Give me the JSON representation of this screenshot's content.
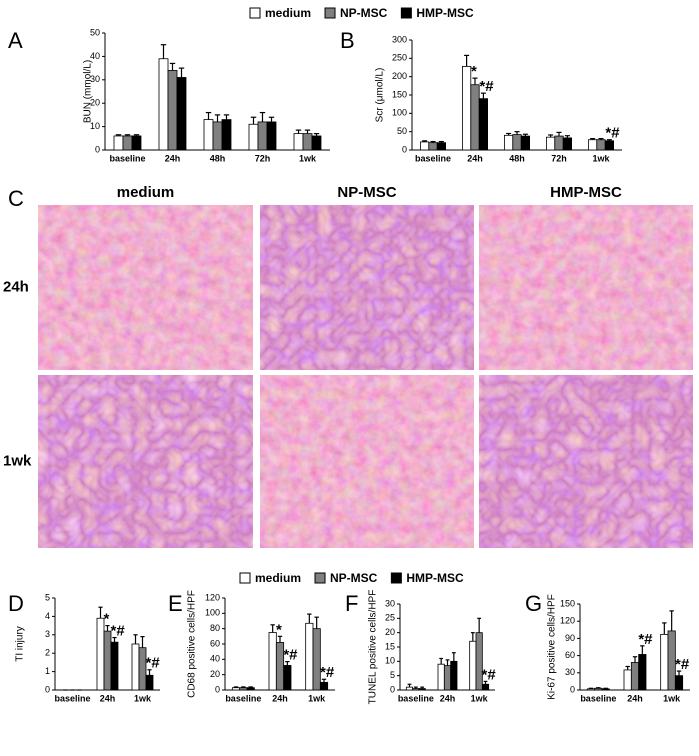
{
  "chart_data": [
    {
      "type": "bar",
      "label": "A",
      "y_label": "BUN (mmol/L)",
      "legend": true,
      "categories": [
        "baseline",
        "24h",
        "48h",
        "72h",
        "1wk"
      ],
      "ylim": [
        0,
        50
      ],
      "yticks": [
        0,
        10,
        20,
        30,
        40,
        50
      ],
      "series": [
        {
          "name": "medium",
          "color": "#ffffff",
          "values": [
            6,
            39,
            13,
            11,
            7
          ],
          "errors": [
            0.5,
            6,
            3,
            3,
            1.5
          ]
        },
        {
          "name": "NP-MSC",
          "color": "#808080",
          "values": [
            6,
            34,
            12,
            12,
            7
          ],
          "errors": [
            0.5,
            3,
            3,
            4,
            1.5
          ]
        },
        {
          "name": "HMP-MSC",
          "color": "#000000",
          "values": [
            6,
            31,
            13,
            12,
            6
          ],
          "errors": [
            0.5,
            4,
            2,
            2,
            1
          ]
        }
      ],
      "annotations": []
    },
    {
      "type": "bar",
      "label": "B",
      "y_label": "Scr (μmol/L)",
      "categories": [
        "baseline",
        "24h",
        "48h",
        "72h",
        "1wk"
      ],
      "ylim": [
        0,
        300
      ],
      "yticks": [
        0,
        50,
        100,
        150,
        200,
        250,
        300
      ],
      "series": [
        {
          "name": "medium",
          "color": "#ffffff",
          "values": [
            22,
            228,
            40,
            35,
            28
          ],
          "errors": [
            3,
            30,
            5,
            6,
            3
          ]
        },
        {
          "name": "NP-MSC",
          "color": "#808080",
          "values": [
            20,
            178,
            42,
            38,
            28
          ],
          "errors": [
            3,
            18,
            8,
            10,
            3
          ]
        },
        {
          "name": "HMP-MSC",
          "color": "#000000",
          "values": [
            20,
            140,
            38,
            33,
            25
          ],
          "errors": [
            3,
            15,
            5,
            6,
            3
          ]
        }
      ],
      "annotations": [
        {
          "text": "*",
          "series": 1,
          "index": 1
        },
        {
          "text": "*#",
          "series": 2,
          "index": 1
        },
        {
          "text": "*#",
          "series": 2,
          "index": 4
        }
      ]
    },
    {
      "type": "bar",
      "label": "D",
      "y_label": "TI injury",
      "legend": true,
      "categories": [
        "baseline",
        "24h",
        "1wk"
      ],
      "ylim": [
        0,
        5
      ],
      "yticks": [
        0,
        1,
        2,
        3,
        4,
        5
      ],
      "series": [
        {
          "name": "medium",
          "color": "#ffffff",
          "values": [
            0,
            3.9,
            2.5
          ],
          "errors": [
            0,
            0.6,
            0.5
          ]
        },
        {
          "name": "NP-MSC",
          "color": "#808080",
          "values": [
            0,
            3.2,
            2.3
          ],
          "errors": [
            0,
            0.3,
            0.6
          ]
        },
        {
          "name": "HMP-MSC",
          "color": "#000000",
          "values": [
            0,
            2.6,
            0.8
          ],
          "errors": [
            0,
            0.25,
            0.3
          ]
        }
      ],
      "annotations": [
        {
          "text": "*",
          "series": 1,
          "index": 1
        },
        {
          "text": "*#",
          "series": 2,
          "index": 1
        },
        {
          "text": "*#",
          "series": 2,
          "index": 2
        }
      ]
    },
    {
      "type": "bar",
      "label": "E",
      "y_label": "CD68 positive cells/HPF",
      "categories": [
        "baseline",
        "24h",
        "1wk"
      ],
      "ylim": [
        0,
        120
      ],
      "yticks": [
        0,
        20,
        40,
        60,
        80,
        100,
        120
      ],
      "series": [
        {
          "name": "medium",
          "color": "#ffffff",
          "values": [
            3,
            75,
            87
          ],
          "errors": [
            1,
            10,
            12
          ]
        },
        {
          "name": "NP-MSC",
          "color": "#808080",
          "values": [
            3,
            62,
            80
          ],
          "errors": [
            1,
            8,
            15
          ]
        },
        {
          "name": "HMP-MSC",
          "color": "#000000",
          "values": [
            3,
            32,
            10
          ],
          "errors": [
            1,
            5,
            4
          ]
        }
      ],
      "annotations": [
        {
          "text": "*",
          "series": 1,
          "index": 1
        },
        {
          "text": "*#",
          "series": 2,
          "index": 1
        },
        {
          "text": "*#",
          "series": 2,
          "index": 2
        }
      ]
    },
    {
      "type": "bar",
      "label": "F",
      "y_label": "TUNEL positive cells/HPF",
      "categories": [
        "baseline",
        "24h",
        "1wk"
      ],
      "ylim": [
        0,
        30
      ],
      "yticks": [
        0,
        5,
        10,
        15,
        20,
        25,
        30
      ],
      "series": [
        {
          "name": "medium",
          "color": "#ffffff",
          "values": [
            1,
            9,
            17
          ],
          "errors": [
            1,
            2,
            3
          ]
        },
        {
          "name": "NP-MSC",
          "color": "#808080",
          "values": [
            0.5,
            8.5,
            20
          ],
          "errors": [
            0.5,
            2,
            5
          ]
        },
        {
          "name": "HMP-MSC",
          "color": "#000000",
          "values": [
            0.5,
            10,
            2
          ],
          "errors": [
            0.5,
            3,
            1
          ]
        }
      ],
      "annotations": [
        {
          "text": "*#",
          "series": 2,
          "index": 2
        }
      ]
    },
    {
      "type": "bar",
      "label": "G",
      "y_label": "Ki-67 positive cells/HPF",
      "categories": [
        "baseline",
        "24h",
        "1wk"
      ],
      "ylim": [
        0,
        150
      ],
      "yticks": [
        0,
        30,
        60,
        90,
        120,
        150
      ],
      "series": [
        {
          "name": "medium",
          "color": "#ffffff",
          "values": [
            2,
            35,
            97
          ],
          "errors": [
            1,
            6,
            20
          ]
        },
        {
          "name": "NP-MSC",
          "color": "#808080",
          "values": [
            3,
            48,
            103
          ],
          "errors": [
            1,
            10,
            35
          ]
        },
        {
          "name": "HMP-MSC",
          "color": "#000000",
          "values": [
            2,
            62,
            25
          ],
          "errors": [
            1,
            15,
            8
          ]
        }
      ],
      "annotations": [
        {
          "text": "*#",
          "series": 2,
          "index": 1
        },
        {
          "text": "*#",
          "series": 2,
          "index": 2
        }
      ]
    }
  ],
  "histology": {
    "label": "C",
    "columns": [
      "medium",
      "NP-MSC",
      "HMP-MSC"
    ],
    "rows": [
      "24h",
      "1wk"
    ]
  }
}
